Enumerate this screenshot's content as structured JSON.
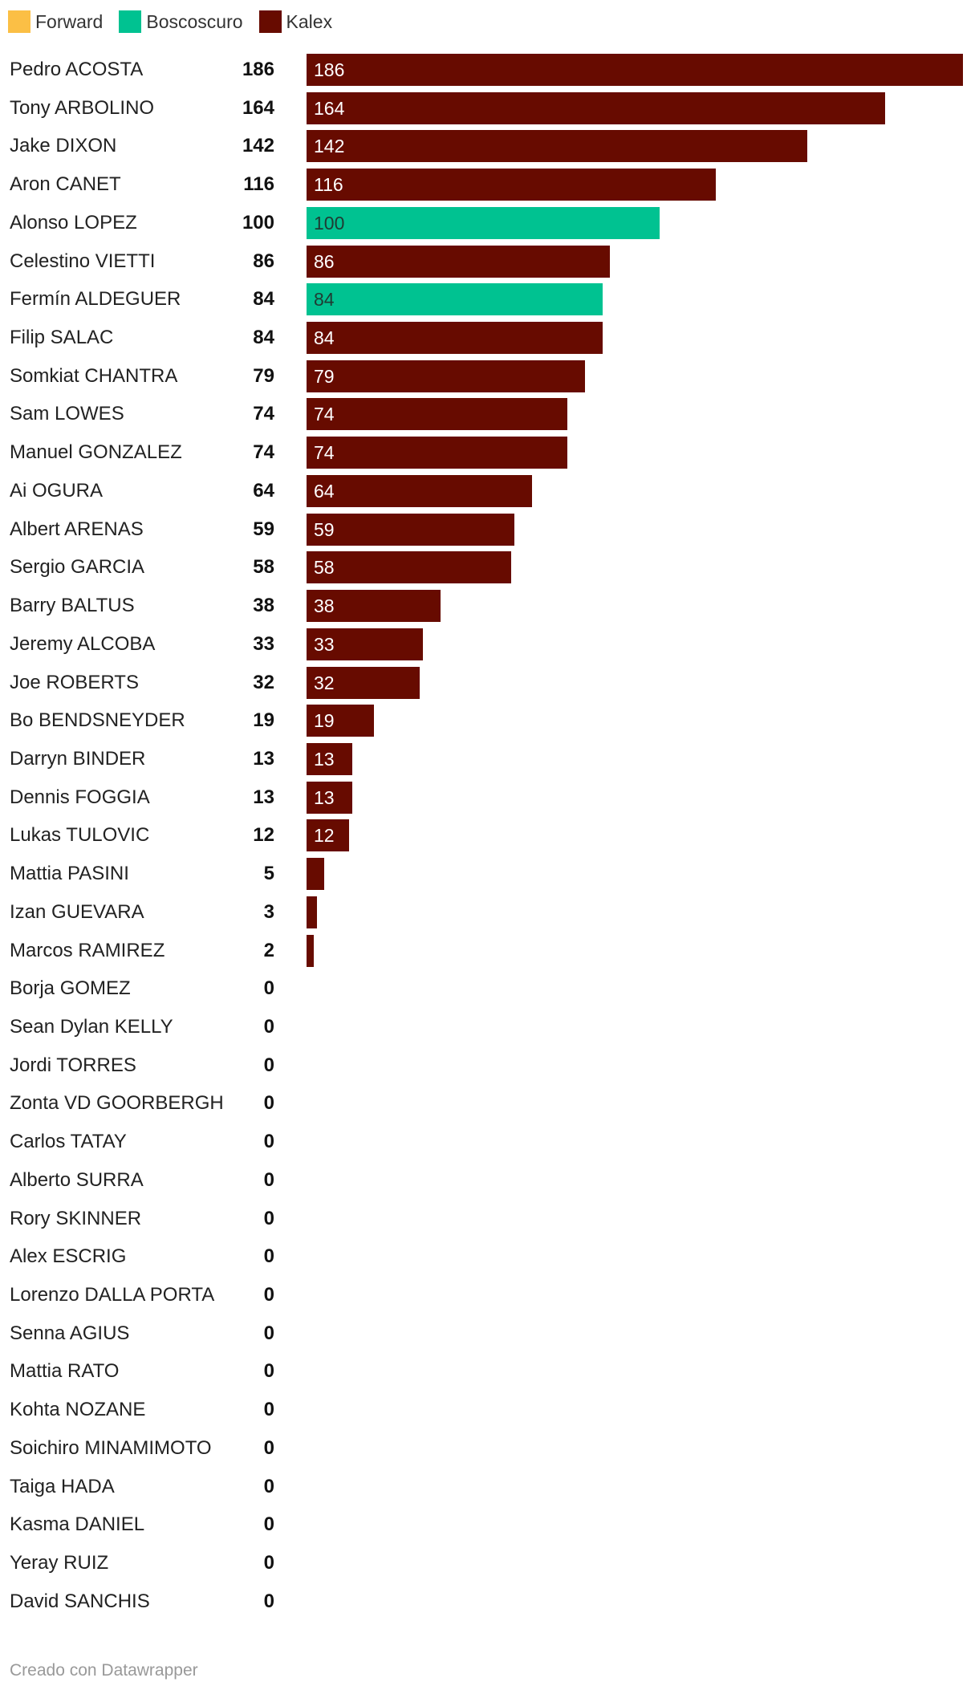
{
  "legend": [
    {
      "label": "Forward",
      "color": "#fbbf45"
    },
    {
      "label": "Boscoscuro",
      "color": "#00c291"
    },
    {
      "label": "Kalex",
      "color": "#670b00"
    }
  ],
  "credit": "Creado con Datawrapper",
  "chart_data": {
    "type": "bar",
    "orientation": "horizontal",
    "title": "",
    "xlabel": "",
    "ylabel": "",
    "xlim": [
      0,
      186
    ],
    "grid": false,
    "legend_position": "top-left",
    "series_colors": {
      "Forward": "#fbbf45",
      "Boscoscuro": "#00c291",
      "Kalex": "#670b00"
    },
    "rows": [
      {
        "name": "Pedro ACOSTA",
        "value": 186,
        "team": "Kalex"
      },
      {
        "name": "Tony ARBOLINO",
        "value": 164,
        "team": "Kalex"
      },
      {
        "name": "Jake DIXON",
        "value": 142,
        "team": "Kalex"
      },
      {
        "name": "Aron CANET",
        "value": 116,
        "team": "Kalex"
      },
      {
        "name": "Alonso LOPEZ",
        "value": 100,
        "team": "Boscoscuro"
      },
      {
        "name": "Celestino VIETTI",
        "value": 86,
        "team": "Kalex"
      },
      {
        "name": "Fermín ALDEGUER",
        "value": 84,
        "team": "Boscoscuro"
      },
      {
        "name": "Filip SALAC",
        "value": 84,
        "team": "Kalex"
      },
      {
        "name": "Somkiat CHANTRA",
        "value": 79,
        "team": "Kalex"
      },
      {
        "name": "Sam LOWES",
        "value": 74,
        "team": "Kalex"
      },
      {
        "name": "Manuel GONZALEZ",
        "value": 74,
        "team": "Kalex"
      },
      {
        "name": "Ai OGURA",
        "value": 64,
        "team": "Kalex"
      },
      {
        "name": "Albert ARENAS",
        "value": 59,
        "team": "Kalex"
      },
      {
        "name": "Sergio GARCIA",
        "value": 58,
        "team": "Kalex"
      },
      {
        "name": "Barry BALTUS",
        "value": 38,
        "team": "Kalex"
      },
      {
        "name": "Jeremy ALCOBA",
        "value": 33,
        "team": "Kalex"
      },
      {
        "name": "Joe ROBERTS",
        "value": 32,
        "team": "Kalex"
      },
      {
        "name": "Bo BENDSNEYDER",
        "value": 19,
        "team": "Kalex"
      },
      {
        "name": "Darryn BINDER",
        "value": 13,
        "team": "Kalex"
      },
      {
        "name": "Dennis FOGGIA",
        "value": 13,
        "team": "Kalex"
      },
      {
        "name": "Lukas TULOVIC",
        "value": 12,
        "team": "Kalex"
      },
      {
        "name": "Mattia PASINI",
        "value": 5,
        "team": "Kalex"
      },
      {
        "name": "Izan GUEVARA",
        "value": 3,
        "team": "Kalex"
      },
      {
        "name": "Marcos RAMIREZ",
        "value": 2,
        "team": "Kalex"
      },
      {
        "name": "Borja GOMEZ",
        "value": 0,
        "team": "Kalex"
      },
      {
        "name": "Sean Dylan KELLY",
        "value": 0,
        "team": "Kalex"
      },
      {
        "name": "Jordi TORRES",
        "value": 0,
        "team": "Kalex"
      },
      {
        "name": "Zonta VD GOORBERGH",
        "value": 0,
        "team": "Kalex"
      },
      {
        "name": "Carlos TATAY",
        "value": 0,
        "team": "Kalex"
      },
      {
        "name": "Alberto SURRA",
        "value": 0,
        "team": "Kalex"
      },
      {
        "name": "Rory SKINNER",
        "value": 0,
        "team": "Kalex"
      },
      {
        "name": "Alex ESCRIG",
        "value": 0,
        "team": "Kalex"
      },
      {
        "name": "Lorenzo DALLA PORTA",
        "value": 0,
        "team": "Kalex"
      },
      {
        "name": "Senna AGIUS",
        "value": 0,
        "team": "Kalex"
      },
      {
        "name": "Mattia RATO",
        "value": 0,
        "team": "Kalex"
      },
      {
        "name": "Kohta NOZANE",
        "value": 0,
        "team": "Kalex"
      },
      {
        "name": "Soichiro MINAMIMOTO",
        "value": 0,
        "team": "Kalex"
      },
      {
        "name": "Taiga HADA",
        "value": 0,
        "team": "Kalex"
      },
      {
        "name": "Kasma DANIEL",
        "value": 0,
        "team": "Kalex"
      },
      {
        "name": "Yeray RUIZ",
        "value": 0,
        "team": "Kalex"
      },
      {
        "name": "David SANCHIS",
        "value": 0,
        "team": "Kalex"
      }
    ]
  }
}
